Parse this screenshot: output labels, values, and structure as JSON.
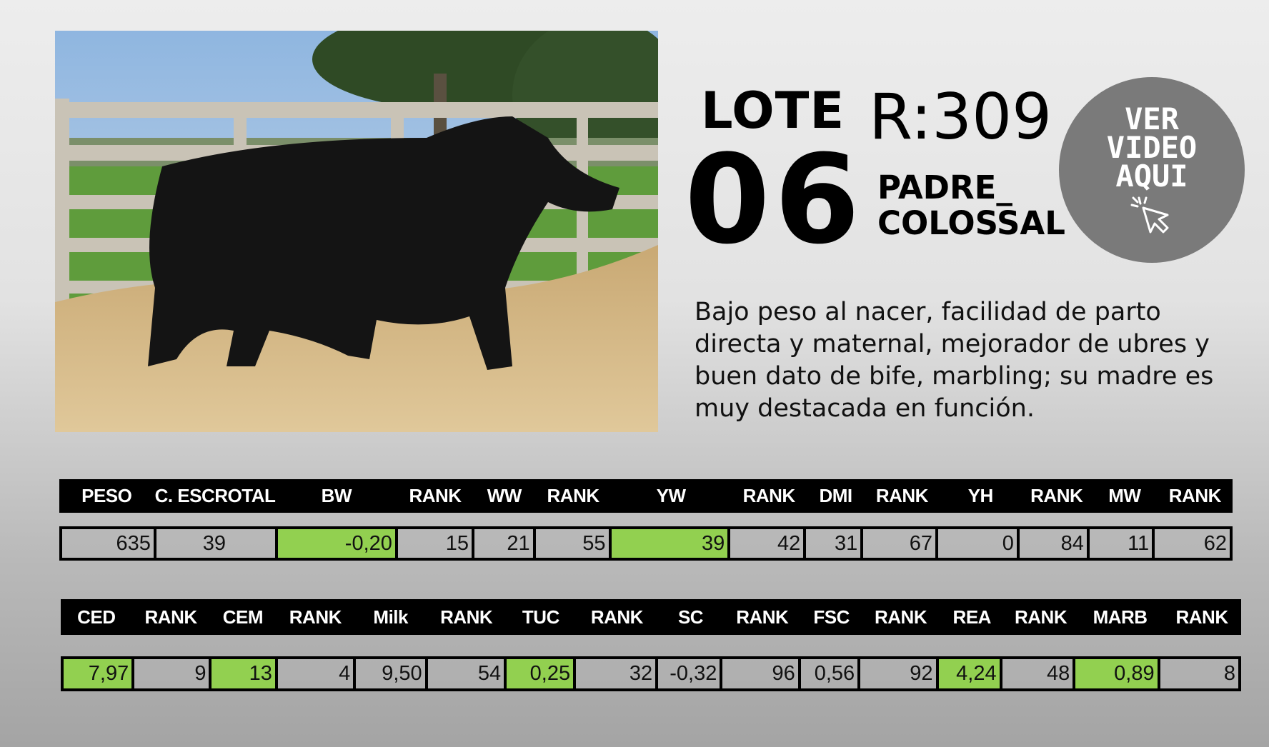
{
  "lot": {
    "label": "LOTE",
    "number": "06",
    "registration": "R:309",
    "sire_line1": "PADRE_",
    "sire_line2": "COLOSSAL"
  },
  "video_button": {
    "line1": "VER",
    "line2": "VIDEO",
    "line3": "AQUI",
    "icon": "cursor-click-icon"
  },
  "description": "Bajo peso al nacer, facilidad de parto directa y maternal, mejorador de ubres y buen dato de bife, marbling; su madre es muy destacada en función.",
  "colors": {
    "highlight": "#92d050",
    "header": "#000000",
    "circle": "#7a7a7a"
  },
  "table1": {
    "headers": [
      "PESO",
      "C. ESCROTAL",
      "BW",
      "RANK",
      "WW",
      "RANK",
      "YW",
      "RANK",
      "DMI",
      "RANK",
      "YH",
      "RANK",
      "MW",
      "RANK"
    ],
    "values": [
      "635",
      "39",
      "-0,20",
      "15",
      "21",
      "55",
      "39",
      "42",
      "31",
      "67",
      "0",
      "84",
      "11",
      "62"
    ],
    "highlighted": [
      2,
      6
    ]
  },
  "table2": {
    "headers": [
      "CED",
      "RANK",
      "CEM",
      "RANK",
      "Milk",
      "RANK",
      "TUC",
      "RANK",
      "SC",
      "RANK",
      "FSC",
      "RANK",
      "REA",
      "RANK",
      "MARB",
      "RANK"
    ],
    "values": [
      "7,97",
      "9",
      "13",
      "4",
      "9,50",
      "54",
      "0,25",
      "32",
      "-0,32",
      "96",
      "0,56",
      "92",
      "4,24",
      "48",
      "0,89",
      "8"
    ],
    "highlighted": [
      0,
      2,
      6,
      12,
      14
    ]
  }
}
